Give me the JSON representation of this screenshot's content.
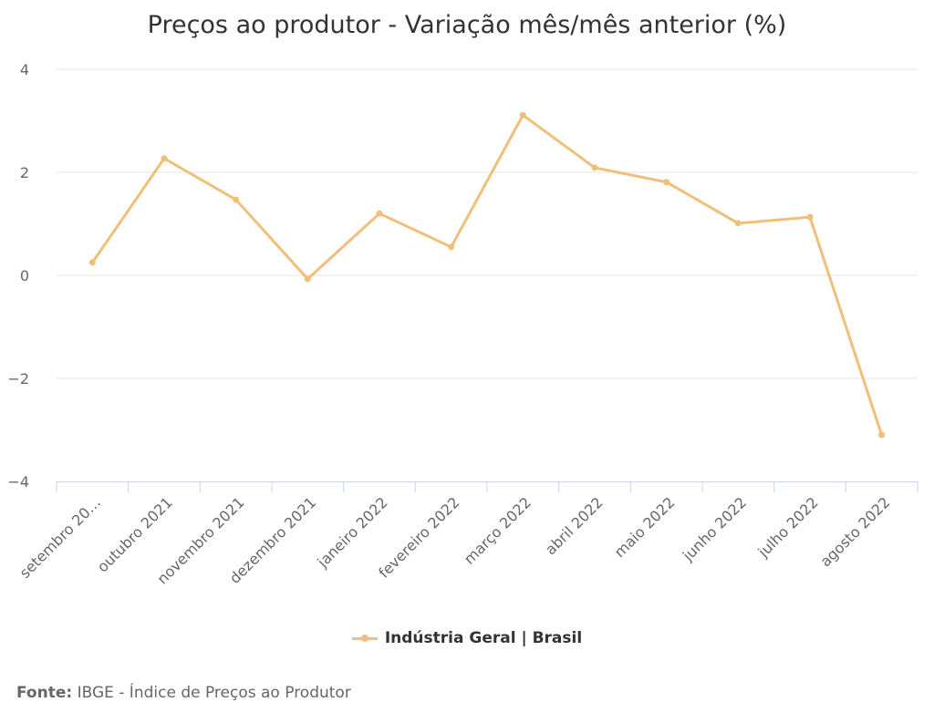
{
  "chart_data": {
    "type": "line",
    "title": "Preços ao produtor - Variação mês/mês anterior (%)",
    "xlabel": "",
    "ylabel": "",
    "categories": [
      "setembro 20…",
      "outubro 2021",
      "novembro 2021",
      "dezembro 2021",
      "janeiro 2022",
      "fevereiro 2022",
      "março 2022",
      "abril 2022",
      "maio 2022",
      "junho 2022",
      "julho 2022",
      "agosto 2022"
    ],
    "series": [
      {
        "name": "Indústria Geral | Brasil",
        "color": "#f0bf78",
        "values": [
          0.25,
          2.27,
          1.47,
          -0.07,
          1.2,
          0.55,
          3.11,
          2.09,
          1.81,
          1.01,
          1.13,
          -3.1
        ]
      }
    ],
    "ylim": [
      -4,
      4
    ],
    "yticks": [
      4,
      2,
      0,
      -2,
      -4
    ],
    "ytick_labels": [
      "4",
      "2",
      "0",
      "−2",
      "−4"
    ],
    "grid": true,
    "legend": "bottom-center"
  },
  "source": {
    "label": "Fonte:",
    "text": "IBGE - Índice de Preços ao Produtor"
  }
}
